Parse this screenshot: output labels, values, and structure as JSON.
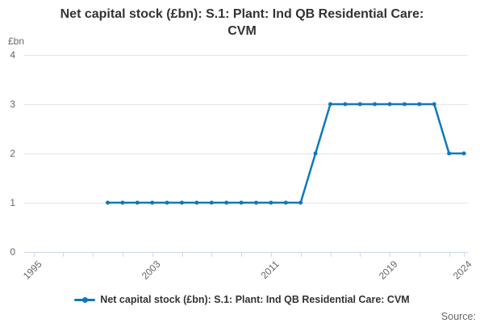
{
  "title": {
    "line1": "Net capital stock (£bn): S.1: Plant: Ind QB Residential Care:",
    "line2": "CVM",
    "full": "Net capital stock (£bn): S.1: Plant: Ind QB Residential Care: CVM"
  },
  "axes": {
    "y_unit": "£bn"
  },
  "legend": {
    "label": "Net capital stock (£bn): S.1: Plant: Ind QB Residential Care: CVM"
  },
  "source": {
    "label": "Source:"
  },
  "colors": {
    "line": "#1077bd",
    "grid": "#e6e6e6",
    "axis": "#ccd6eb",
    "muted_text": "#666666",
    "title_text": "#333333"
  },
  "chart_data": {
    "type": "line",
    "title": "Net capital stock (£bn): S.1: Plant: Ind QB Residential Care: CVM",
    "xlabel": "",
    "ylabel": "£bn",
    "series_name": "Net capital stock (£bn): S.1: Plant: Ind QB Residential Care: CVM",
    "x": [
      2000,
      2001,
      2002,
      2003,
      2004,
      2005,
      2006,
      2007,
      2008,
      2009,
      2010,
      2011,
      2012,
      2013,
      2014,
      2015,
      2016,
      2017,
      2018,
      2019,
      2020,
      2021,
      2022,
      2023,
      2024
    ],
    "values": [
      1,
      1,
      1,
      1,
      1,
      1,
      1,
      1,
      1,
      1,
      1,
      1,
      1,
      1,
      2,
      3,
      3,
      3,
      3,
      3,
      3,
      3,
      3,
      2,
      2
    ],
    "xlim": [
      1995,
      2024
    ],
    "ylim": [
      0,
      4
    ],
    "yticks": [
      0,
      1,
      2,
      3,
      4
    ],
    "xticks": [
      1995,
      1997,
      1999,
      2001,
      2003,
      2005,
      2007,
      2009,
      2011,
      2013,
      2015,
      2017,
      2019,
      2021,
      2023,
      2024
    ],
    "labeled_xticks": [
      1995,
      2003,
      2011,
      2019,
      2024
    ],
    "grid": "on",
    "legend_position": "bottom",
    "marker": "circle"
  }
}
